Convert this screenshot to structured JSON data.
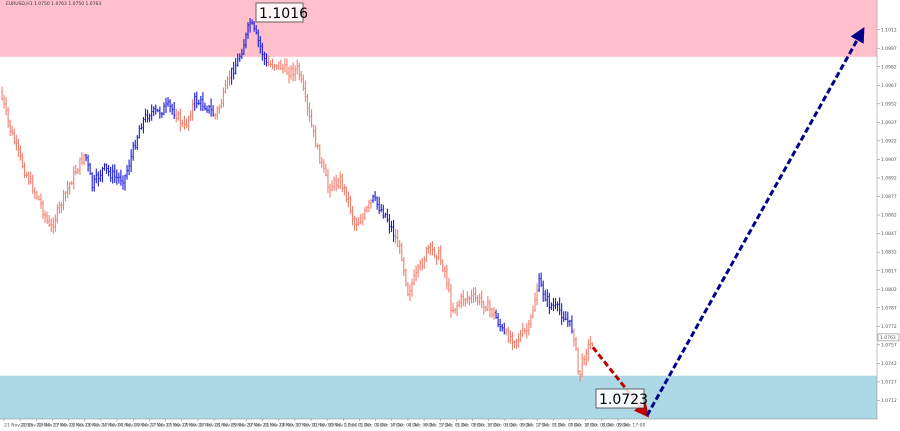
{
  "chart_data": {
    "type": "ohlc",
    "header": "EURUSD,H1  1.0750 1.0763 1.0750 1.0763",
    "ylim": [
      1.0697,
      1.1036
    ],
    "price_ticks": [
      "1.1012",
      "1.0997",
      "1.0982",
      "1.0967",
      "1.0952",
      "1.0937",
      "1.0922",
      "1.0907",
      "1.0892",
      "1.0877",
      "1.0862",
      "1.0847",
      "1.0832",
      "1.0817",
      "1.0802",
      "1.0787",
      "1.0772",
      "1.0757",
      "1.0742",
      "1.0727",
      "1.0712"
    ],
    "current_price": "1.0763",
    "time_ticks": [
      "21 Nov 2023",
      "22 Nov 09:00",
      "22 Nov 17:00",
      "23 Nov 01:00",
      "23 Nov 09:00",
      "23 Nov 17:00",
      "24 Nov 01:00",
      "24 Nov 09:00",
      "24 Nov 17:00",
      "27 Nov 01:00",
      "27 Nov 09:00",
      "27 Nov 17:00",
      "28 Nov 01:00",
      "28 Nov 09:00",
      "28 Nov 17:00",
      "29 Nov 01:00",
      "29 Nov 09:00",
      "29 Nov 17:00",
      "30 Nov 01:00",
      "30 Nov 09:00",
      "30 Nov 17:00",
      "1 Dec 01:00",
      "1 Dec 09:00",
      "1 Dec 17:00",
      "4 Dec 01:00",
      "4 Dec 09:00",
      "4 Dec 17:00",
      "5 Dec 01:00",
      "5 Dec 09:00",
      "5 Dec 17:00",
      "6 Dec 01:00",
      "6 Dec 09:00",
      "6 Dec 17:00",
      "7 Dec 01:00",
      "7 Dec 09:00",
      "7 Dec 17:00",
      "8 Dec 01:00",
      "8 Dec 09:00",
      "8 Dec 17:00"
    ],
    "zones": [
      {
        "name": "resistance-zone",
        "from": 1.099,
        "to": 1.1036,
        "color": "#ffc0cb"
      },
      {
        "name": "support-zone",
        "from": 1.0697,
        "to": 1.0732,
        "color": "#add8e6"
      }
    ],
    "annotations": [
      {
        "name": "high-label",
        "text": "1.1016"
      },
      {
        "name": "low-label",
        "text": "1.0723"
      }
    ],
    "forecast": [
      {
        "name": "red-forecast-arrow",
        "from": [
          0.676,
          1.0755
        ],
        "to": [
          0.738,
          1.07
        ],
        "color": "#c00000"
      },
      {
        "name": "blue-forecast-arrow",
        "from": [
          0.738,
          1.07
        ],
        "to": [
          0.984,
          1.1012
        ],
        "color": "#00008b"
      }
    ],
    "colors": {
      "down_wave": "#f08070",
      "up_wave": "#1a1ad8"
    },
    "anchors": [
      [
        0,
        1.0962,
        "s"
      ],
      [
        0.012,
        1.093,
        "s"
      ],
      [
        0.028,
        1.0898,
        "s"
      ],
      [
        0.046,
        1.0872,
        "s"
      ],
      [
        0.057,
        1.085,
        "s"
      ],
      [
        0.066,
        1.0865,
        "s"
      ],
      [
        0.078,
        1.0885,
        "s"
      ],
      [
        0.088,
        1.09,
        "s"
      ],
      [
        0.097,
        1.0912,
        "u"
      ],
      [
        0.105,
        1.0885,
        "u"
      ],
      [
        0.118,
        1.09,
        "u"
      ],
      [
        0.132,
        1.0892,
        "u"
      ],
      [
        0.142,
        1.0892,
        "u"
      ],
      [
        0.15,
        1.091,
        "u"
      ],
      [
        0.16,
        1.0935,
        "u"
      ],
      [
        0.17,
        1.0945,
        "u"
      ],
      [
        0.18,
        1.0945,
        "u"
      ],
      [
        0.192,
        1.095,
        "u"
      ],
      [
        0.2,
        1.0945,
        "s"
      ],
      [
        0.21,
        1.0932,
        "s"
      ],
      [
        0.222,
        1.0955,
        "u"
      ],
      [
        0.236,
        1.095,
        "u"
      ],
      [
        0.245,
        1.0942,
        "s"
      ],
      [
        0.255,
        1.0958,
        "s"
      ],
      [
        0.262,
        1.0975,
        "u"
      ],
      [
        0.272,
        1.0988,
        "u"
      ],
      [
        0.28,
        1.1005,
        "u"
      ],
      [
        0.285,
        1.1018,
        "u"
      ],
      [
        0.296,
        1.1,
        "u"
      ],
      [
        0.304,
        1.0983,
        "s"
      ],
      [
        0.315,
        1.0985,
        "s"
      ],
      [
        0.328,
        1.0978,
        "s"
      ],
      [
        0.34,
        1.098,
        "s"
      ],
      [
        0.351,
        1.0945,
        "s"
      ],
      [
        0.362,
        1.0915,
        "s"
      ],
      [
        0.374,
        1.0885,
        "s"
      ],
      [
        0.388,
        1.089,
        "s"
      ],
      [
        0.397,
        1.0875,
        "s"
      ],
      [
        0.404,
        1.0855,
        "s"
      ],
      [
        0.414,
        1.086,
        "s"
      ],
      [
        0.425,
        1.0875,
        "u"
      ],
      [
        0.44,
        1.0862,
        "u"
      ],
      [
        0.45,
        1.0845,
        "s"
      ],
      [
        0.458,
        1.083,
        "s"
      ],
      [
        0.465,
        1.08,
        "s"
      ],
      [
        0.476,
        1.0815,
        "s"
      ],
      [
        0.488,
        1.0835,
        "s"
      ],
      [
        0.5,
        1.083,
        "s"
      ],
      [
        0.508,
        1.0815,
        "s"
      ],
      [
        0.515,
        1.0785,
        "s"
      ],
      [
        0.528,
        1.0795,
        "s"
      ],
      [
        0.54,
        1.0795,
        "s"
      ],
      [
        0.553,
        1.079,
        "s"
      ],
      [
        0.565,
        1.078,
        "u"
      ],
      [
        0.575,
        1.0765,
        "s"
      ],
      [
        0.59,
        1.0762,
        "s"
      ],
      [
        0.603,
        1.077,
        "s"
      ],
      [
        0.614,
        1.0808,
        "u"
      ],
      [
        0.626,
        1.079,
        "u"
      ],
      [
        0.638,
        1.0785,
        "u"
      ],
      [
        0.648,
        1.0775,
        "u"
      ],
      [
        0.654,
        1.0768,
        "s"
      ],
      [
        0.66,
        1.073,
        "s"
      ],
      [
        0.667,
        1.0752,
        "s"
      ],
      [
        0.676,
        1.076,
        "s"
      ]
    ]
  }
}
